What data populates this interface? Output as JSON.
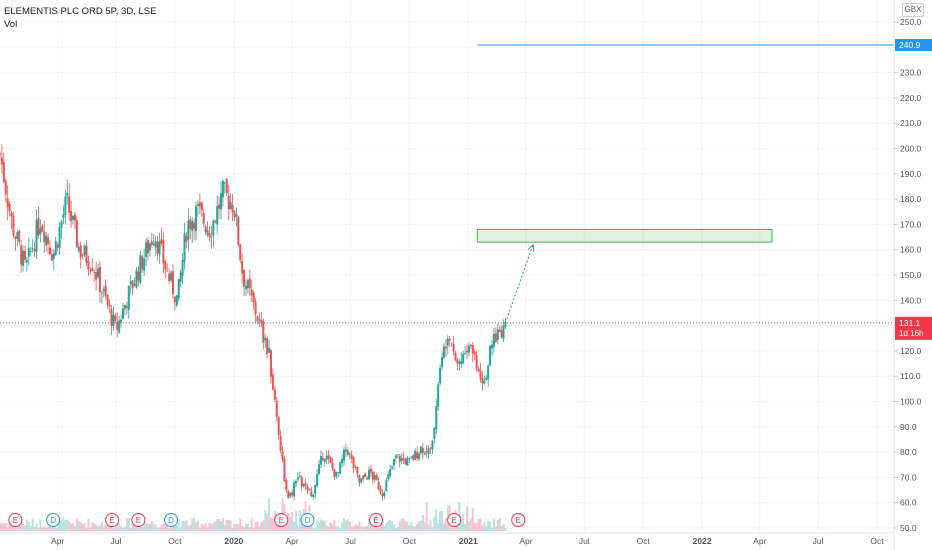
{
  "header": {
    "title": "ELEMENTIS PLC ORD 5P, 3D, LSE",
    "vol_label": "Vol",
    "currency": "GBX"
  },
  "price_tags": {
    "target": {
      "value": "240.9",
      "color": "#2196f3"
    },
    "last": {
      "value": "131.1",
      "countdown": "1d 16h",
      "color": "#f23645"
    }
  },
  "event_markers": [
    {
      "label": "E",
      "color": "#f23645"
    },
    {
      "label": "D",
      "color": "#2196f3"
    },
    {
      "label": "E",
      "color": "#f23645"
    },
    {
      "label": "E",
      "color": "#f23645"
    },
    {
      "label": "D",
      "color": "#2196f3"
    },
    {
      "label": "E",
      "color": "#f23645"
    },
    {
      "label": "D",
      "color": "#2196f3"
    },
    {
      "label": "E",
      "color": "#f23645"
    },
    {
      "label": "E",
      "color": "#f23645"
    },
    {
      "label": "E",
      "color": "#f23645"
    }
  ],
  "chart_data": {
    "type": "candlestick",
    "x_ticks": [
      "Apr",
      "Jul",
      "Oct",
      "2020",
      "Apr",
      "Jul",
      "Oct",
      "2021",
      "Apr",
      "Jul",
      "Oct",
      "2022",
      "Apr",
      "Jul",
      "Oct"
    ],
    "y_ticks": [
      "250.0",
      "240.0",
      "230.0",
      "220.0",
      "210.0",
      "200.0",
      "190.0",
      "180.0",
      "170.0",
      "160.0",
      "150.0",
      "140.0",
      "130.0",
      "120.0",
      "110.0",
      "100.0",
      "90.0",
      "80.0",
      "70.0",
      "60.0",
      "50.0"
    ],
    "ylim": [
      50,
      250
    ],
    "colors": {
      "up": "#26a69a",
      "down": "#ef5350"
    },
    "price_path": [
      [
        "2019-01-01",
        198
      ],
      [
        "2019-01-20",
        170
      ],
      [
        "2019-02-10",
        152
      ],
      [
        "2019-03-05",
        172
      ],
      [
        "2019-03-25",
        158
      ],
      [
        "2019-04-15",
        179
      ],
      [
        "2019-05-05",
        160
      ],
      [
        "2019-05-25",
        155
      ],
      [
        "2019-06-15",
        140
      ],
      [
        "2019-07-01",
        128
      ],
      [
        "2019-07-20",
        142
      ],
      [
        "2019-08-10",
        155
      ],
      [
        "2019-08-30",
        167
      ],
      [
        "2019-09-20",
        150
      ],
      [
        "2019-10-05",
        140
      ],
      [
        "2019-10-20",
        170
      ],
      [
        "2019-11-05",
        175
      ],
      [
        "2019-11-25",
        168
      ],
      [
        "2019-12-15",
        182
      ],
      [
        "2020-01-01",
        178
      ],
      [
        "2020-01-15",
        150
      ],
      [
        "2020-02-05",
        135
      ],
      [
        "2020-02-25",
        118
      ],
      [
        "2020-03-10",
        90
      ],
      [
        "2020-03-25",
        60
      ],
      [
        "2020-04-10",
        70
      ],
      [
        "2020-05-01",
        62
      ],
      [
        "2020-05-20",
        80
      ],
      [
        "2020-06-10",
        70
      ],
      [
        "2020-06-25",
        82
      ],
      [
        "2020-07-15",
        68
      ],
      [
        "2020-08-01",
        72
      ],
      [
        "2020-08-20",
        64
      ],
      [
        "2020-09-10",
        78
      ],
      [
        "2020-10-01",
        76
      ],
      [
        "2020-10-20",
        82
      ],
      [
        "2020-11-05",
        80
      ],
      [
        "2020-11-15",
        108
      ],
      [
        "2020-12-01",
        130
      ],
      [
        "2020-12-15",
        115
      ],
      [
        "2021-01-05",
        122
      ],
      [
        "2021-01-25",
        108
      ],
      [
        "2021-02-10",
        125
      ],
      [
        "2021-02-28",
        131.1
      ]
    ],
    "volume_range": [
      0,
      1
    ],
    "annotations": {
      "target_line": {
        "y": 240.9,
        "x_start": "2021-01-15",
        "x_end": "2022-10-15"
      },
      "target_zone": {
        "y_low": 163,
        "y_high": 168,
        "x_start": "2021-01-15",
        "x_end": "2022-04-20"
      },
      "arrow": {
        "from": [
          "2021-02-28",
          131.1
        ],
        "to": [
          "2021-04-12",
          162
        ]
      },
      "last_price_line": {
        "y": 131.1
      }
    },
    "xlabel": "",
    "ylabel": ""
  }
}
